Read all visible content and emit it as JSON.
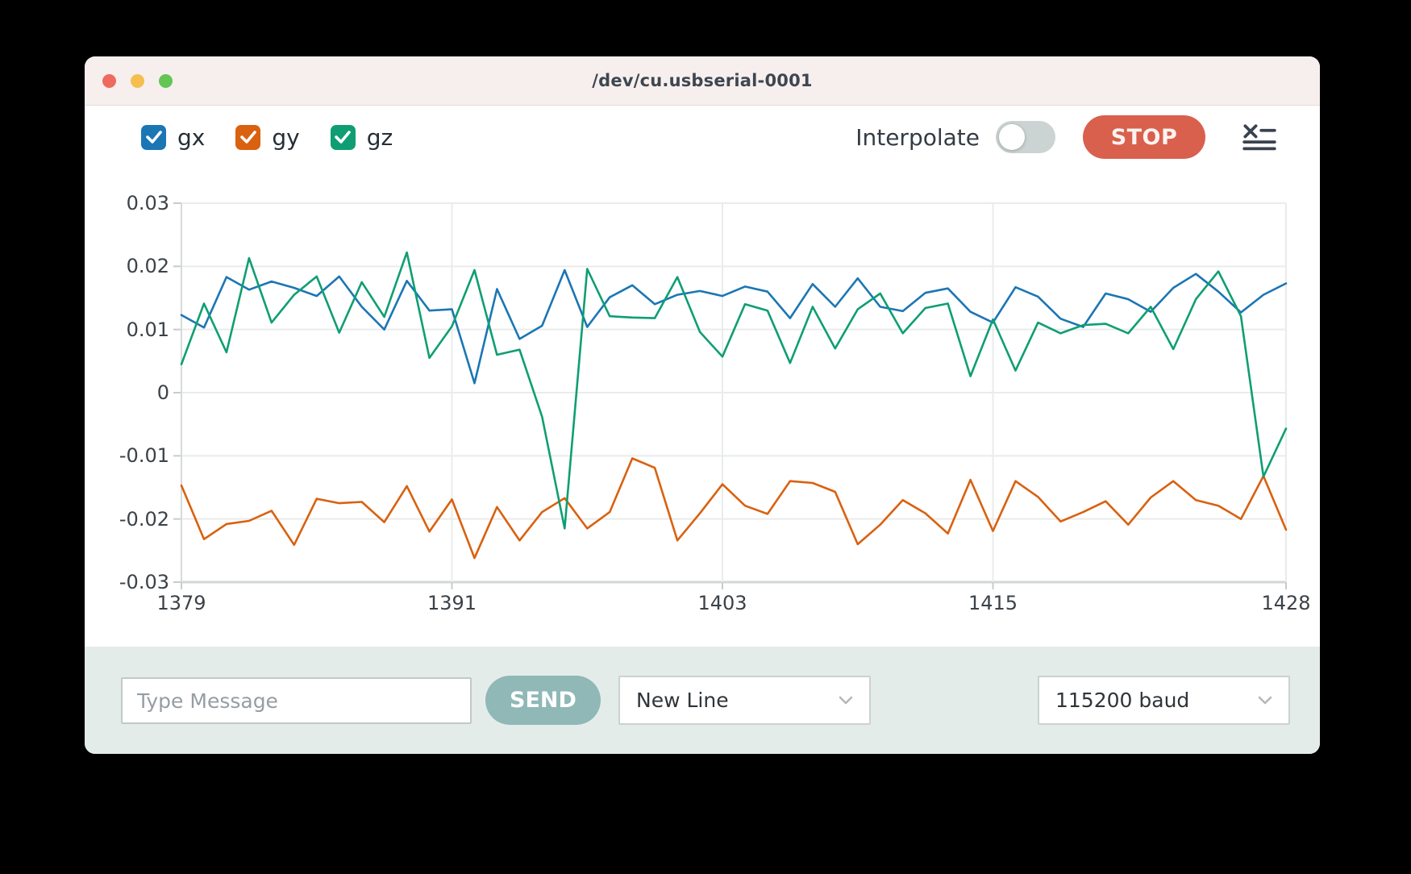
{
  "window": {
    "title": "/dev/cu.usbserial-0001",
    "controls": {
      "close": "close",
      "minimize": "minimize",
      "zoom": "zoom"
    }
  },
  "toolbar": {
    "interpolate_label": "Interpolate",
    "interpolate_on": false,
    "stop_label": "STOP"
  },
  "chart_data": {
    "type": "line",
    "title": "",
    "xlabel": "",
    "ylabel": "",
    "xlim": [
      1379,
      1428
    ],
    "ylim": [
      -0.03,
      0.03
    ],
    "grid": true,
    "legend_position": "top-left-checkboxes",
    "x_ticks": [
      {
        "v": 1379,
        "label": "1379"
      },
      {
        "v": 1391,
        "label": "1391"
      },
      {
        "v": 1403,
        "label": "1403"
      },
      {
        "v": 1415,
        "label": "1415"
      },
      {
        "v": 1428,
        "label": "1428"
      }
    ],
    "y_ticks": [
      {
        "v": 0.03,
        "label": "0.03"
      },
      {
        "v": 0.02,
        "label": "0.02"
      },
      {
        "v": 0.01,
        "label": "0.01"
      },
      {
        "v": 0,
        "label": "0"
      },
      {
        "v": -0.01,
        "label": "-0.01"
      },
      {
        "v": -0.02,
        "label": "-0.02"
      },
      {
        "v": -0.03,
        "label": "-0.03"
      }
    ],
    "x": [
      1379,
      1380,
      1381,
      1382,
      1383,
      1384,
      1385,
      1386,
      1387,
      1388,
      1389,
      1390,
      1391,
      1392,
      1393,
      1394,
      1395,
      1396,
      1397,
      1398,
      1399,
      1400,
      1401,
      1402,
      1403,
      1404,
      1405,
      1406,
      1407,
      1408,
      1409,
      1410,
      1411,
      1412,
      1413,
      1414,
      1415,
      1416,
      1417,
      1418,
      1419,
      1420,
      1421,
      1422,
      1423,
      1424,
      1425,
      1426,
      1427,
      1428
    ],
    "series": [
      {
        "name": "gx",
        "color": "#1b76b4",
        "checked": true,
        "values": [
          0.0123,
          0.0103,
          0.0183,
          0.0163,
          0.0176,
          0.0166,
          0.0153,
          0.0184,
          0.0136,
          0.01,
          0.0177,
          0.013,
          0.0132,
          0.0015,
          0.0164,
          0.0085,
          0.0106,
          0.0194,
          0.0104,
          0.0151,
          0.017,
          0.014,
          0.0155,
          0.0161,
          0.0153,
          0.0168,
          0.016,
          0.0118,
          0.0172,
          0.0136,
          0.0181,
          0.0136,
          0.0129,
          0.0158,
          0.0165,
          0.0128,
          0.0111,
          0.0167,
          0.0152,
          0.0117,
          0.0104,
          0.0157,
          0.0148,
          0.0128,
          0.0166,
          0.0188,
          0.016,
          0.0127,
          0.0155,
          0.0173
        ]
      },
      {
        "name": "gy",
        "color": "#d9610f",
        "checked": true,
        "values": [
          -0.0147,
          -0.0232,
          -0.0208,
          -0.0203,
          -0.0187,
          -0.0241,
          -0.0168,
          -0.0175,
          -0.0173,
          -0.0205,
          -0.0148,
          -0.022,
          -0.0169,
          -0.0262,
          -0.0181,
          -0.0234,
          -0.0189,
          -0.0167,
          -0.0215,
          -0.0189,
          -0.0104,
          -0.0119,
          -0.0234,
          -0.0191,
          -0.0145,
          -0.0179,
          -0.0192,
          -0.014,
          -0.0143,
          -0.0157,
          -0.024,
          -0.0209,
          -0.017,
          -0.0191,
          -0.0223,
          -0.0138,
          -0.0219,
          -0.014,
          -0.0165,
          -0.0204,
          -0.0189,
          -0.0172,
          -0.0209,
          -0.0166,
          -0.014,
          -0.017,
          -0.0179,
          -0.02,
          -0.0132,
          -0.0217
        ]
      },
      {
        "name": "gz",
        "color": "#0f9e73",
        "checked": true,
        "values": [
          0.0045,
          0.0141,
          0.0064,
          0.0213,
          0.0111,
          0.0155,
          0.0184,
          0.0095,
          0.0175,
          0.012,
          0.0222,
          0.0055,
          0.0105,
          0.0194,
          0.006,
          0.0068,
          -0.0038,
          -0.0215,
          0.0196,
          0.0121,
          0.0119,
          0.0118,
          0.0183,
          0.0096,
          0.0057,
          0.014,
          0.013,
          0.0047,
          0.0136,
          0.007,
          0.0132,
          0.0157,
          0.0094,
          0.0134,
          0.0141,
          0.0026,
          0.0116,
          0.0035,
          0.0111,
          0.0094,
          0.0107,
          0.0109,
          0.0094,
          0.0136,
          0.0069,
          0.0148,
          0.0192,
          0.0121,
          -0.0133,
          -0.0057
        ]
      }
    ]
  },
  "message_bar": {
    "input_value": "",
    "input_placeholder": "Type Message",
    "send_label": "SEND",
    "line_ending_selected": "New Line",
    "baud_selected": "115200 baud"
  }
}
